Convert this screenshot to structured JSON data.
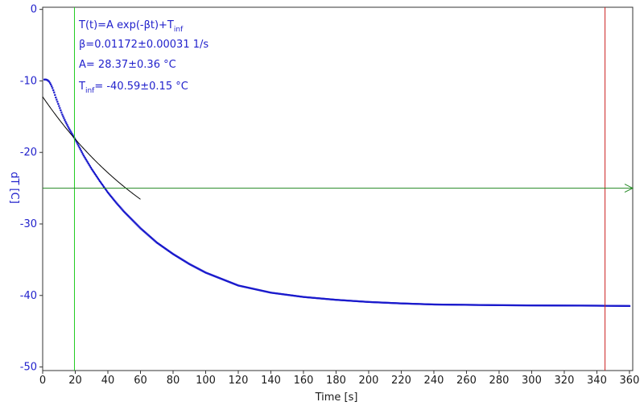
{
  "chart_data": {
    "type": "scatter",
    "xlabel": "Time [s]",
    "ylabel": "dT [C]",
    "xlim": [
      0,
      362
    ],
    "ylim": [
      -50.5,
      0.3
    ],
    "xticks": [
      0,
      20,
      40,
      60,
      80,
      100,
      120,
      140,
      160,
      180,
      200,
      220,
      240,
      260,
      280,
      300,
      320,
      340,
      360
    ],
    "yticks": [
      0,
      -10,
      -20,
      -30,
      -40,
      -50
    ],
    "grid": false,
    "series": [
      {
        "kind": "points",
        "color": "#1a1acc",
        "x": [
          1,
          2,
          3,
          4,
          5,
          6,
          7,
          8,
          9,
          10,
          12,
          14,
          16,
          18,
          20,
          25,
          30,
          35,
          40,
          45,
          50,
          60,
          70,
          80,
          90,
          100,
          120,
          140,
          160,
          180,
          200,
          220,
          240,
          260,
          280,
          300,
          320,
          340,
          345,
          350,
          360
        ],
        "y": [
          -9.8,
          -9.8,
          -9.9,
          -10.1,
          -10.5,
          -11.0,
          -11.6,
          -12.3,
          -12.9,
          -13.5,
          -14.7,
          -15.7,
          -16.6,
          -17.4,
          -18.2,
          -20.4,
          -22.3,
          -24.0,
          -25.6,
          -27.0,
          -28.3,
          -30.6,
          -32.6,
          -34.2,
          -35.6,
          -36.8,
          -38.6,
          -39.6,
          -40.2,
          -40.6,
          -40.9,
          -41.1,
          -41.25,
          -41.3,
          -41.35,
          -41.38,
          -41.4,
          -41.42,
          -41.43,
          -41.44,
          -41.46
        ]
      },
      {
        "kind": "fit-line",
        "color": "#000000",
        "fit_x_range": [
          0,
          60
        ]
      }
    ],
    "fit": {
      "A": 28.37,
      "beta": 0.01172,
      "T_inf": -40.59
    },
    "annotations": {
      "line1_main": "T(t)=A exp(-βt)+T",
      "line1_sub": "inf",
      "line2": "β=0.01172±0.00031 1/s",
      "line3": "A= 28.37±0.36 °C",
      "line4_main": "T",
      "line4_sub": "inf",
      "line4_rest": "= -40.59±0.15 °C"
    },
    "markers": {
      "green_vertical_x": 19.5,
      "red_vertical_x": 345,
      "green_horizontal_y": -25
    },
    "colors": {
      "green_marker": "#22cc22",
      "red_marker": "#cc2222",
      "horizontal_marker": "#228822",
      "y_axis_text": "#2222cc"
    }
  }
}
